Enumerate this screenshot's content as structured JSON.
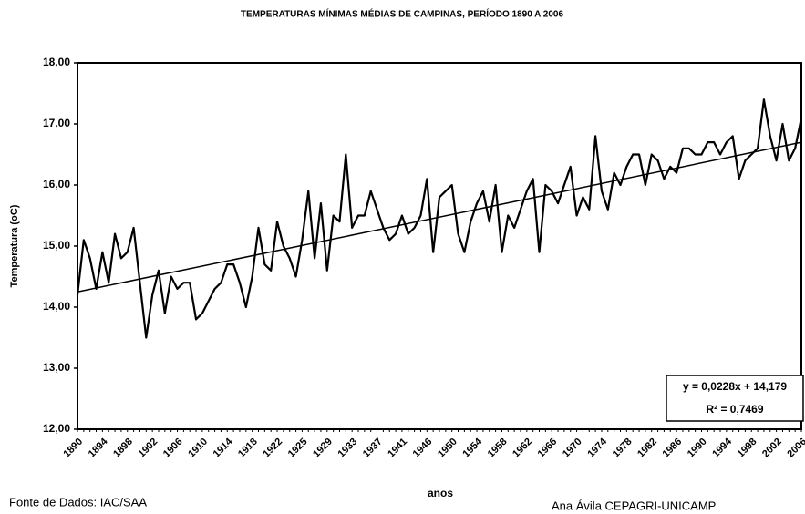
{
  "chart_data": {
    "type": "line",
    "title": "TEMPERATURAS MÍNIMAS MÉDIAS DE CAMPINAS, PERÍODO 1890 A 2006",
    "y_label": "Temperatura (oC)",
    "x_label": "anos",
    "source": "Fonte de Dados: IAC/SAA",
    "credit": "Ana Ávila CEPAGRI-UNICAMP",
    "equation": "y = 0,0228x + 14,179",
    "r_squared": "R² = 0,7469",
    "categories": [
      "1890",
      null,
      null,
      null,
      "1894",
      null,
      null,
      null,
      "1898",
      null,
      null,
      null,
      "1902",
      null,
      null,
      null,
      "1906",
      null,
      null,
      null,
      "1910",
      null,
      null,
      null,
      "1914",
      null,
      null,
      null,
      "1918",
      null,
      null,
      null,
      "1922",
      null,
      null,
      null,
      "1925",
      null,
      null,
      null,
      "1929",
      null,
      null,
      null,
      "1933",
      null,
      null,
      null,
      "1937",
      null,
      null,
      null,
      "1941",
      null,
      null,
      null,
      "1946",
      null,
      null,
      null,
      "1950",
      null,
      null,
      null,
      "1954",
      null,
      null,
      null,
      "1958",
      null,
      null,
      null,
      "1962",
      null,
      null,
      null,
      "1966",
      null,
      null,
      null,
      "1970",
      null,
      null,
      null,
      "1974",
      null,
      null,
      null,
      "1978",
      null,
      null,
      null,
      "1982",
      null,
      null,
      null,
      "1986",
      null,
      null,
      null,
      "1990",
      null,
      null,
      null,
      "1994",
      null,
      null,
      null,
      "1998",
      null,
      null,
      null,
      "2002",
      null,
      null,
      null,
      "2006"
    ],
    "series": [
      {
        "color": "#000000",
        "values": [
          14.2,
          15.1,
          14.8,
          14.3,
          14.9,
          14.4,
          15.2,
          14.8,
          14.9,
          15.3,
          14.4,
          13.5,
          14.2,
          14.6,
          13.9,
          14.5,
          14.3,
          14.4,
          14.4,
          13.8,
          13.9,
          14.1,
          14.3,
          14.4,
          14.7,
          14.7,
          14.4,
          14.0,
          14.5,
          15.3,
          14.7,
          14.6,
          15.4,
          15.0,
          14.8,
          14.5,
          15.1,
          15.9,
          14.8,
          15.7,
          14.6,
          15.5,
          15.4,
          16.5,
          15.3,
          15.5,
          15.5,
          15.9,
          15.6,
          15.3,
          15.1,
          15.2,
          15.5,
          15.2,
          15.3,
          15.5,
          16.1,
          14.9,
          15.8,
          15.9,
          16.0,
          15.2,
          14.9,
          15.4,
          15.7,
          15.9,
          15.4,
          16.0,
          14.9,
          15.5,
          15.3,
          15.6,
          15.9,
          16.1,
          14.9,
          16.0,
          15.9,
          15.7,
          16.0,
          16.3,
          15.5,
          15.8,
          15.6,
          16.8,
          15.9,
          15.6,
          16.2,
          16.0,
          16.3,
          16.5,
          16.5,
          16.0,
          16.5,
          16.4,
          16.1,
          16.3,
          16.2,
          16.6,
          16.6,
          16.5,
          16.5,
          16.7,
          16.7,
          16.5,
          16.7,
          16.8,
          16.1,
          16.4,
          16.5,
          16.6,
          17.4,
          16.8,
          16.4,
          17.0,
          16.4,
          16.6,
          17.1
        ]
      }
    ],
    "trendline": {
      "color": "#000000",
      "values": [
        14.25,
        16.7
      ]
    },
    "ylim": [
      12,
      18
    ],
    "yticks": [
      {
        "value": 12,
        "label": "12,00"
      },
      {
        "value": 13,
        "label": "13,00"
      },
      {
        "value": 14,
        "label": "14,00"
      },
      {
        "value": 15,
        "label": "15,00"
      },
      {
        "value": 16,
        "label": "16,00"
      },
      {
        "value": 17,
        "label": "17,00"
      },
      {
        "value": 18,
        "label": "18,00"
      }
    ],
    "grid": false
  }
}
